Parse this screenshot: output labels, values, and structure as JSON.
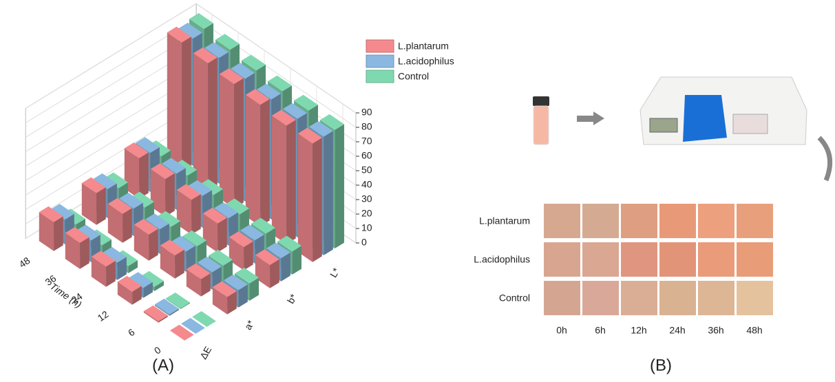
{
  "chart_data": {
    "type": "bar3d",
    "panel_label": "(A)",
    "xlabel": "Time (h)",
    "categories": [
      "0",
      "6",
      "12",
      "24",
      "36",
      "48"
    ],
    "depth_categories": [
      "ΔE",
      "a*",
      "b*",
      "L*"
    ],
    "ylim": [
      0,
      90
    ],
    "yticks": [
      0,
      10,
      20,
      30,
      40,
      50,
      60,
      70,
      80,
      90
    ],
    "grid": true,
    "legend": "upper right",
    "series": [
      {
        "name": "L.plantarum",
        "color": "#f48a8e",
        "values": [
          [
            0,
            1,
            9,
            14,
            18,
            20
          ],
          [
            12,
            12,
            16,
            18,
            20,
            22
          ],
          [
            16,
            16,
            20,
            24,
            26,
            28
          ],
          [
            82,
            82,
            84,
            86,
            88,
            90
          ]
        ]
      },
      {
        "name": "L.acidophilus",
        "color": "#8ab8e0",
        "values": [
          [
            0,
            1,
            7,
            12,
            15,
            17
          ],
          [
            12,
            12,
            14,
            17,
            19,
            20
          ],
          [
            16,
            16,
            19,
            22,
            25,
            27
          ],
          [
            82,
            82,
            83,
            85,
            87,
            88
          ]
        ]
      },
      {
        "name": "Control",
        "color": "#7fd9b0",
        "values": [
          [
            0,
            0.5,
            3,
            5,
            7,
            9
          ],
          [
            12,
            12,
            13,
            14,
            15,
            16
          ],
          [
            16,
            16,
            17,
            18,
            19,
            20
          ],
          [
            82,
            83,
            84,
            86,
            88,
            90
          ]
        ]
      }
    ]
  },
  "panel_b": {
    "panel_label": "(B)",
    "columns": [
      "0h",
      "6h",
      "12h",
      "24h",
      "36h",
      "48h"
    ],
    "rows": [
      {
        "label": "L.plantarum",
        "colors": [
          "#d6a890",
          "#d4ab92",
          "#de9e82",
          "#e89a78",
          "#eda07e",
          "#e8a07c"
        ]
      },
      {
        "label": "L.acidophilus",
        "colors": [
          "#d8a690",
          "#d9a792",
          "#e09580",
          "#e29478",
          "#ea9c7a",
          "#e99c78"
        ]
      },
      {
        "label": "Control",
        "colors": [
          "#d4a692",
          "#d9a898",
          "#d9ae94",
          "#d9b292",
          "#dcb695",
          "#e5c29e"
        ]
      }
    ]
  }
}
